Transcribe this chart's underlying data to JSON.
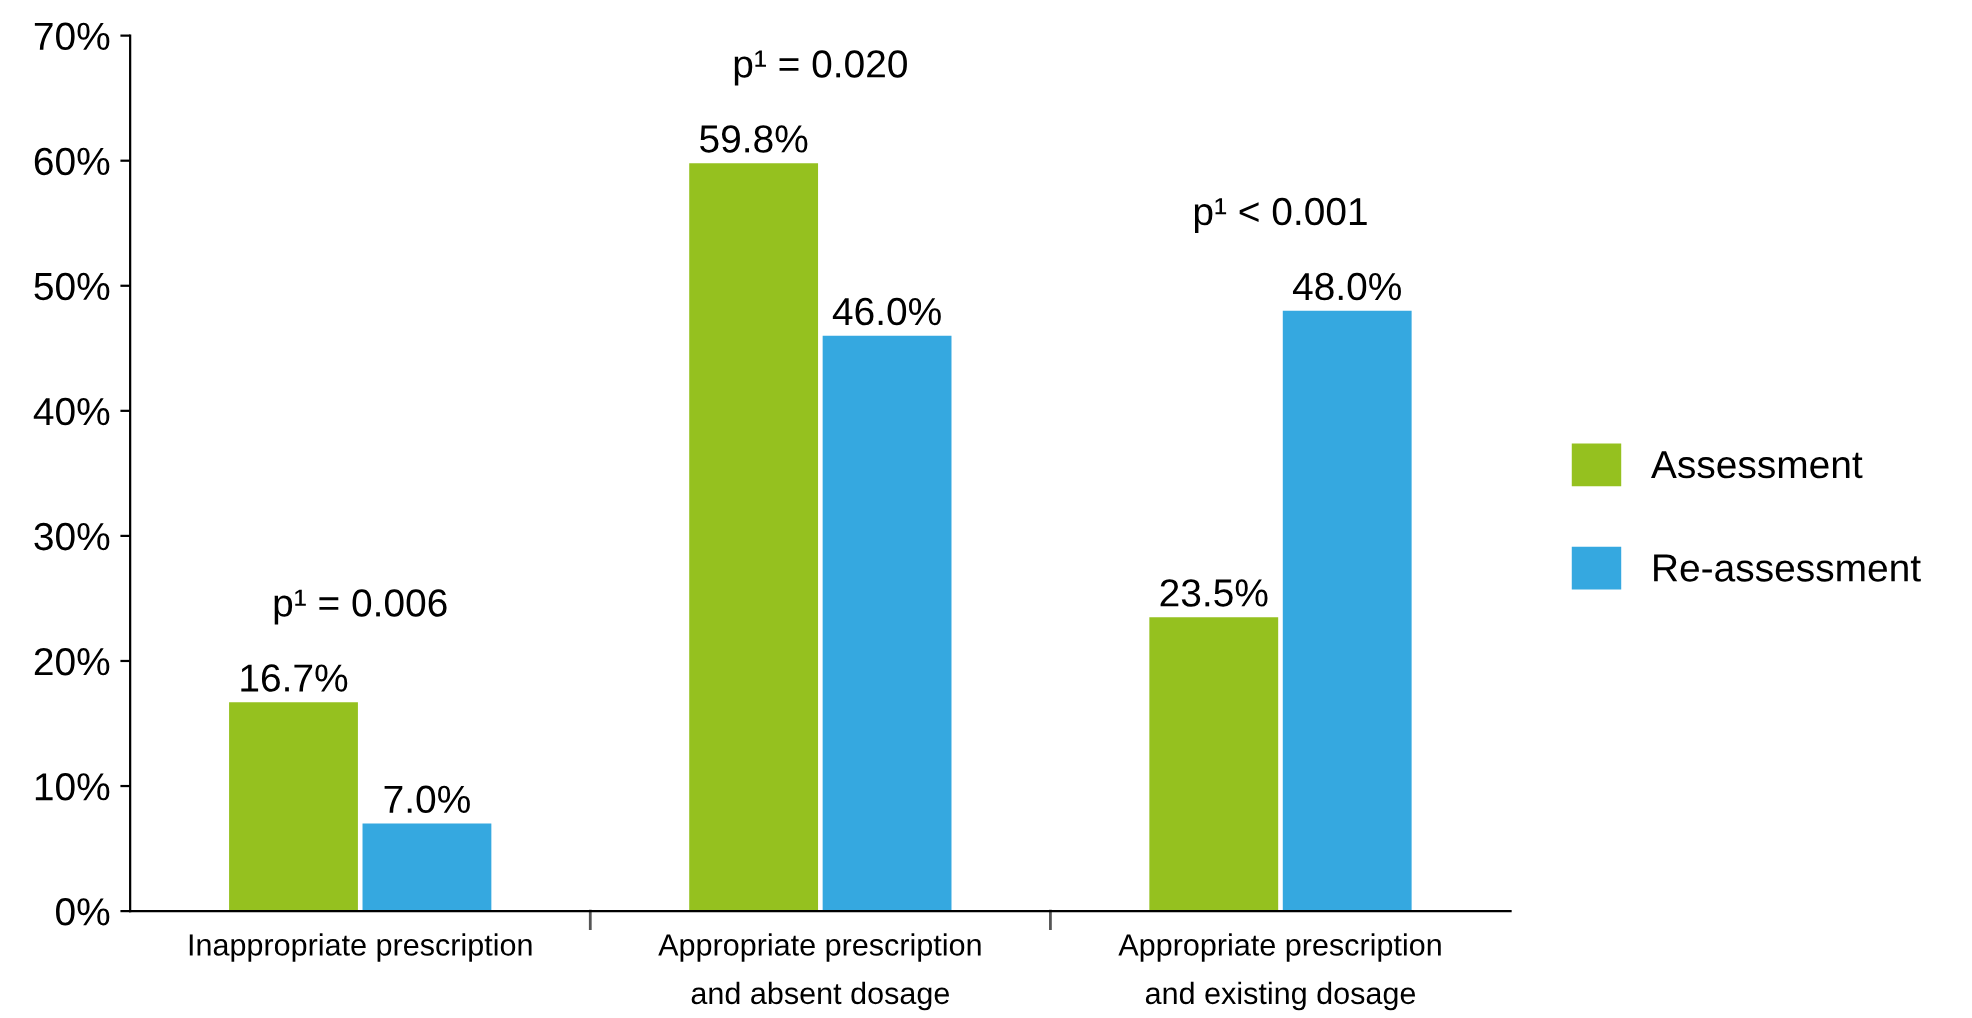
{
  "chart_data": {
    "type": "bar",
    "categories": [
      "Inappropriate prescription",
      "Appropriate prescription\nand absent dosage",
      "Appropriate prescription\nand existing dosage"
    ],
    "series": [
      {
        "name": "Assessment",
        "color": "#95c11f",
        "values": [
          16.7,
          59.8,
          23.5
        ],
        "value_labels": [
          "16.7%",
          "59.8%",
          "23.5%"
        ]
      },
      {
        "name": "Re-assessment",
        "color": "#35a8e0",
        "values": [
          7.0,
          46.0,
          48.0
        ],
        "value_labels": [
          "7.0%",
          "46.0%",
          "48.0%"
        ]
      }
    ],
    "ylim": [
      0,
      70
    ],
    "yticks": [
      {
        "value": 0,
        "label": "0%"
      },
      {
        "value": 10,
        "label": "10%"
      },
      {
        "value": 20,
        "label": "20%"
      },
      {
        "value": 30,
        "label": "30%"
      },
      {
        "value": 40,
        "label": "40%"
      },
      {
        "value": 50,
        "label": "50%"
      },
      {
        "value": 60,
        "label": "60%"
      },
      {
        "value": 70,
        "label": "70%"
      }
    ],
    "annotations": [
      "p¹ = 0.006",
      "p¹ = 0.020",
      "p¹ < 0.001"
    ],
    "grid": false,
    "legend": "right"
  }
}
